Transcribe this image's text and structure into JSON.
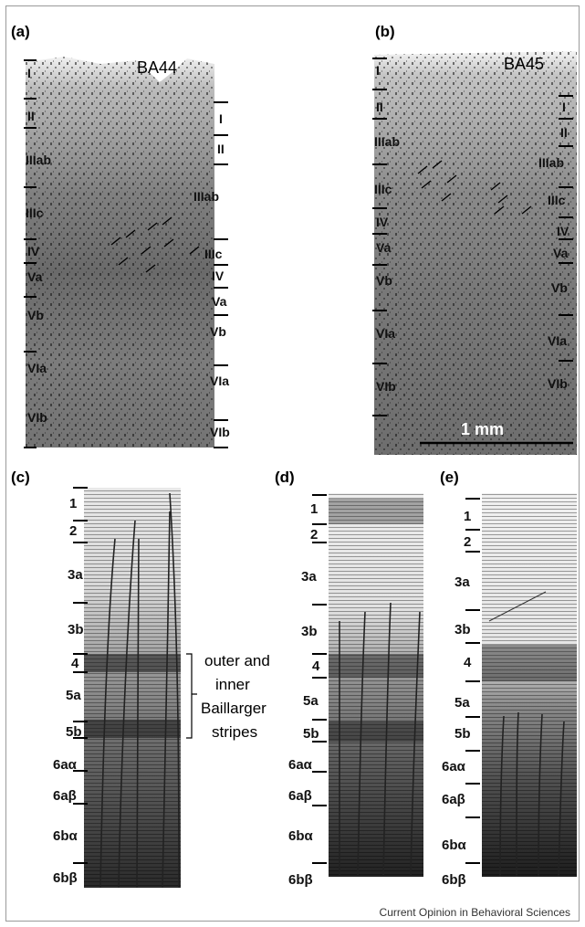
{
  "panels": {
    "a": {
      "label": "(a)",
      "area": "BA44",
      "left_layers": [
        "I",
        "II",
        "IIIab",
        "IIIc",
        "IV",
        "Va",
        "Vb",
        "VIa",
        "VIb"
      ],
      "right_layers": [
        "I",
        "II",
        "IIIab",
        "IIIc",
        "IV",
        "Va",
        "Vb",
        "VIa",
        "VIb"
      ]
    },
    "b": {
      "label": "(b)",
      "area": "BA45",
      "left_layers": [
        "I",
        "II",
        "IIIab",
        "IIIc",
        "IV",
        "Va",
        "Vb",
        "VIa",
        "VIb"
      ],
      "right_layers": [
        "I",
        "II",
        "IIIab",
        "IIIc",
        "IV",
        "Va",
        "Vb",
        "VIa",
        "VIb"
      ],
      "scale_bar": "1 mm"
    },
    "c": {
      "label": "(c)",
      "layers": [
        "1",
        "2",
        "3a",
        "3b",
        "4",
        "5a",
        "5b",
        "6aα",
        "6aβ",
        "6bα",
        "6bβ"
      ],
      "annotation": [
        "outer and",
        "inner",
        "Baillarger",
        "stripes"
      ]
    },
    "d": {
      "label": "(d)",
      "layers": [
        "1",
        "2",
        "3a",
        "3b",
        "4",
        "5a",
        "5b",
        "6aα",
        "6aβ",
        "6bα",
        "6bβ"
      ]
    },
    "e": {
      "label": "(e)",
      "layers": [
        "1",
        "2",
        "3a",
        "3b",
        "4",
        "5a",
        "5b",
        "6aα",
        "6aβ",
        "6bα",
        "6bβ"
      ]
    }
  },
  "credit": "Current Opinion in Behavioral Sciences"
}
